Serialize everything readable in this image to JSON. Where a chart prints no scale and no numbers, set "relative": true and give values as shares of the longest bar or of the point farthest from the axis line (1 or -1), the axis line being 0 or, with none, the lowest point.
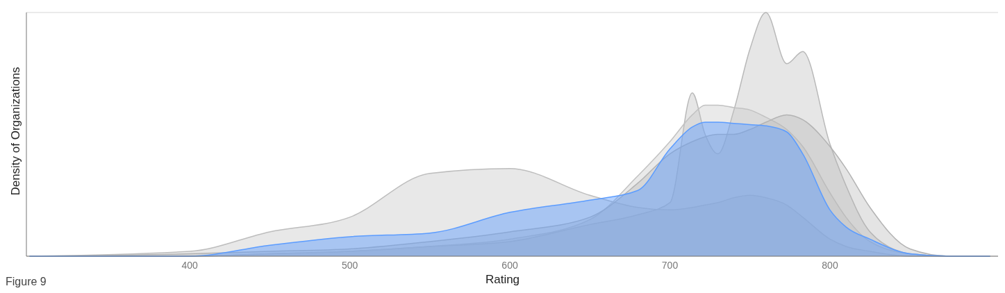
{
  "chart_data": {
    "type": "area",
    "relative": true,
    "xlabel": "Rating",
    "ylabel": "Density of Organizations",
    "annotations": [
      "Figure 9"
    ],
    "xlim": [
      298,
      905
    ],
    "xticks": [
      400,
      500,
      600,
      700,
      800
    ],
    "grid": "y",
    "legend": false,
    "x": [
      300,
      400,
      450,
      500,
      550,
      600,
      650,
      680,
      700,
      714,
      722,
      730,
      740,
      750,
      760,
      773,
      783,
      800,
      810,
      825,
      850,
      875,
      900
    ],
    "series": [
      {
        "color": "#bdbdbd",
        "values": [
          0,
          0.02,
          0.1,
          0.16,
          0.34,
          0.36,
          0.25,
          0.2,
          0.19,
          0.2,
          0.21,
          0.22,
          0.24,
          0.25,
          0.24,
          0.21,
          0.16,
          0.07,
          0.04,
          0.02,
          0,
          0,
          0
        ]
      },
      {
        "color": "#b8b8b8",
        "values": [
          0,
          0,
          0.01,
          0.02,
          0.04,
          0.06,
          0.13,
          0.17,
          0.22,
          0.67,
          0.5,
          0.42,
          0.6,
          0.85,
          1,
          0.79,
          0.84,
          0.46,
          0.29,
          0.1,
          0.01,
          0,
          0
        ]
      },
      {
        "color": "#c2c2c2",
        "values": [
          0,
          0,
          0.01,
          0.02,
          0.04,
          0.07,
          0.15,
          0.33,
          0.47,
          0.58,
          0.62,
          0.62,
          0.61,
          0.6,
          0.57,
          0.52,
          0.45,
          0.26,
          0.16,
          0.06,
          0.01,
          0,
          0
        ]
      },
      {
        "color": "#b3b3b3",
        "values": [
          0,
          0.01,
          0.02,
          0.03,
          0.06,
          0.1,
          0.16,
          0.3,
          0.42,
          0.47,
          0.49,
          0.5,
          0.5,
          0.52,
          0.55,
          0.58,
          0.56,
          0.45,
          0.36,
          0.2,
          0.03,
          0,
          0
        ]
      },
      {
        "color": "#5b9cff",
        "values": [
          0,
          0,
          0.045,
          0.08,
          0.095,
          0.18,
          0.23,
          0.27,
          0.44,
          0.53,
          0.55,
          0.55,
          0.545,
          0.54,
          0.535,
          0.51,
          0.42,
          0.19,
          0.12,
          0.07,
          0.01,
          0,
          0
        ]
      }
    ]
  }
}
